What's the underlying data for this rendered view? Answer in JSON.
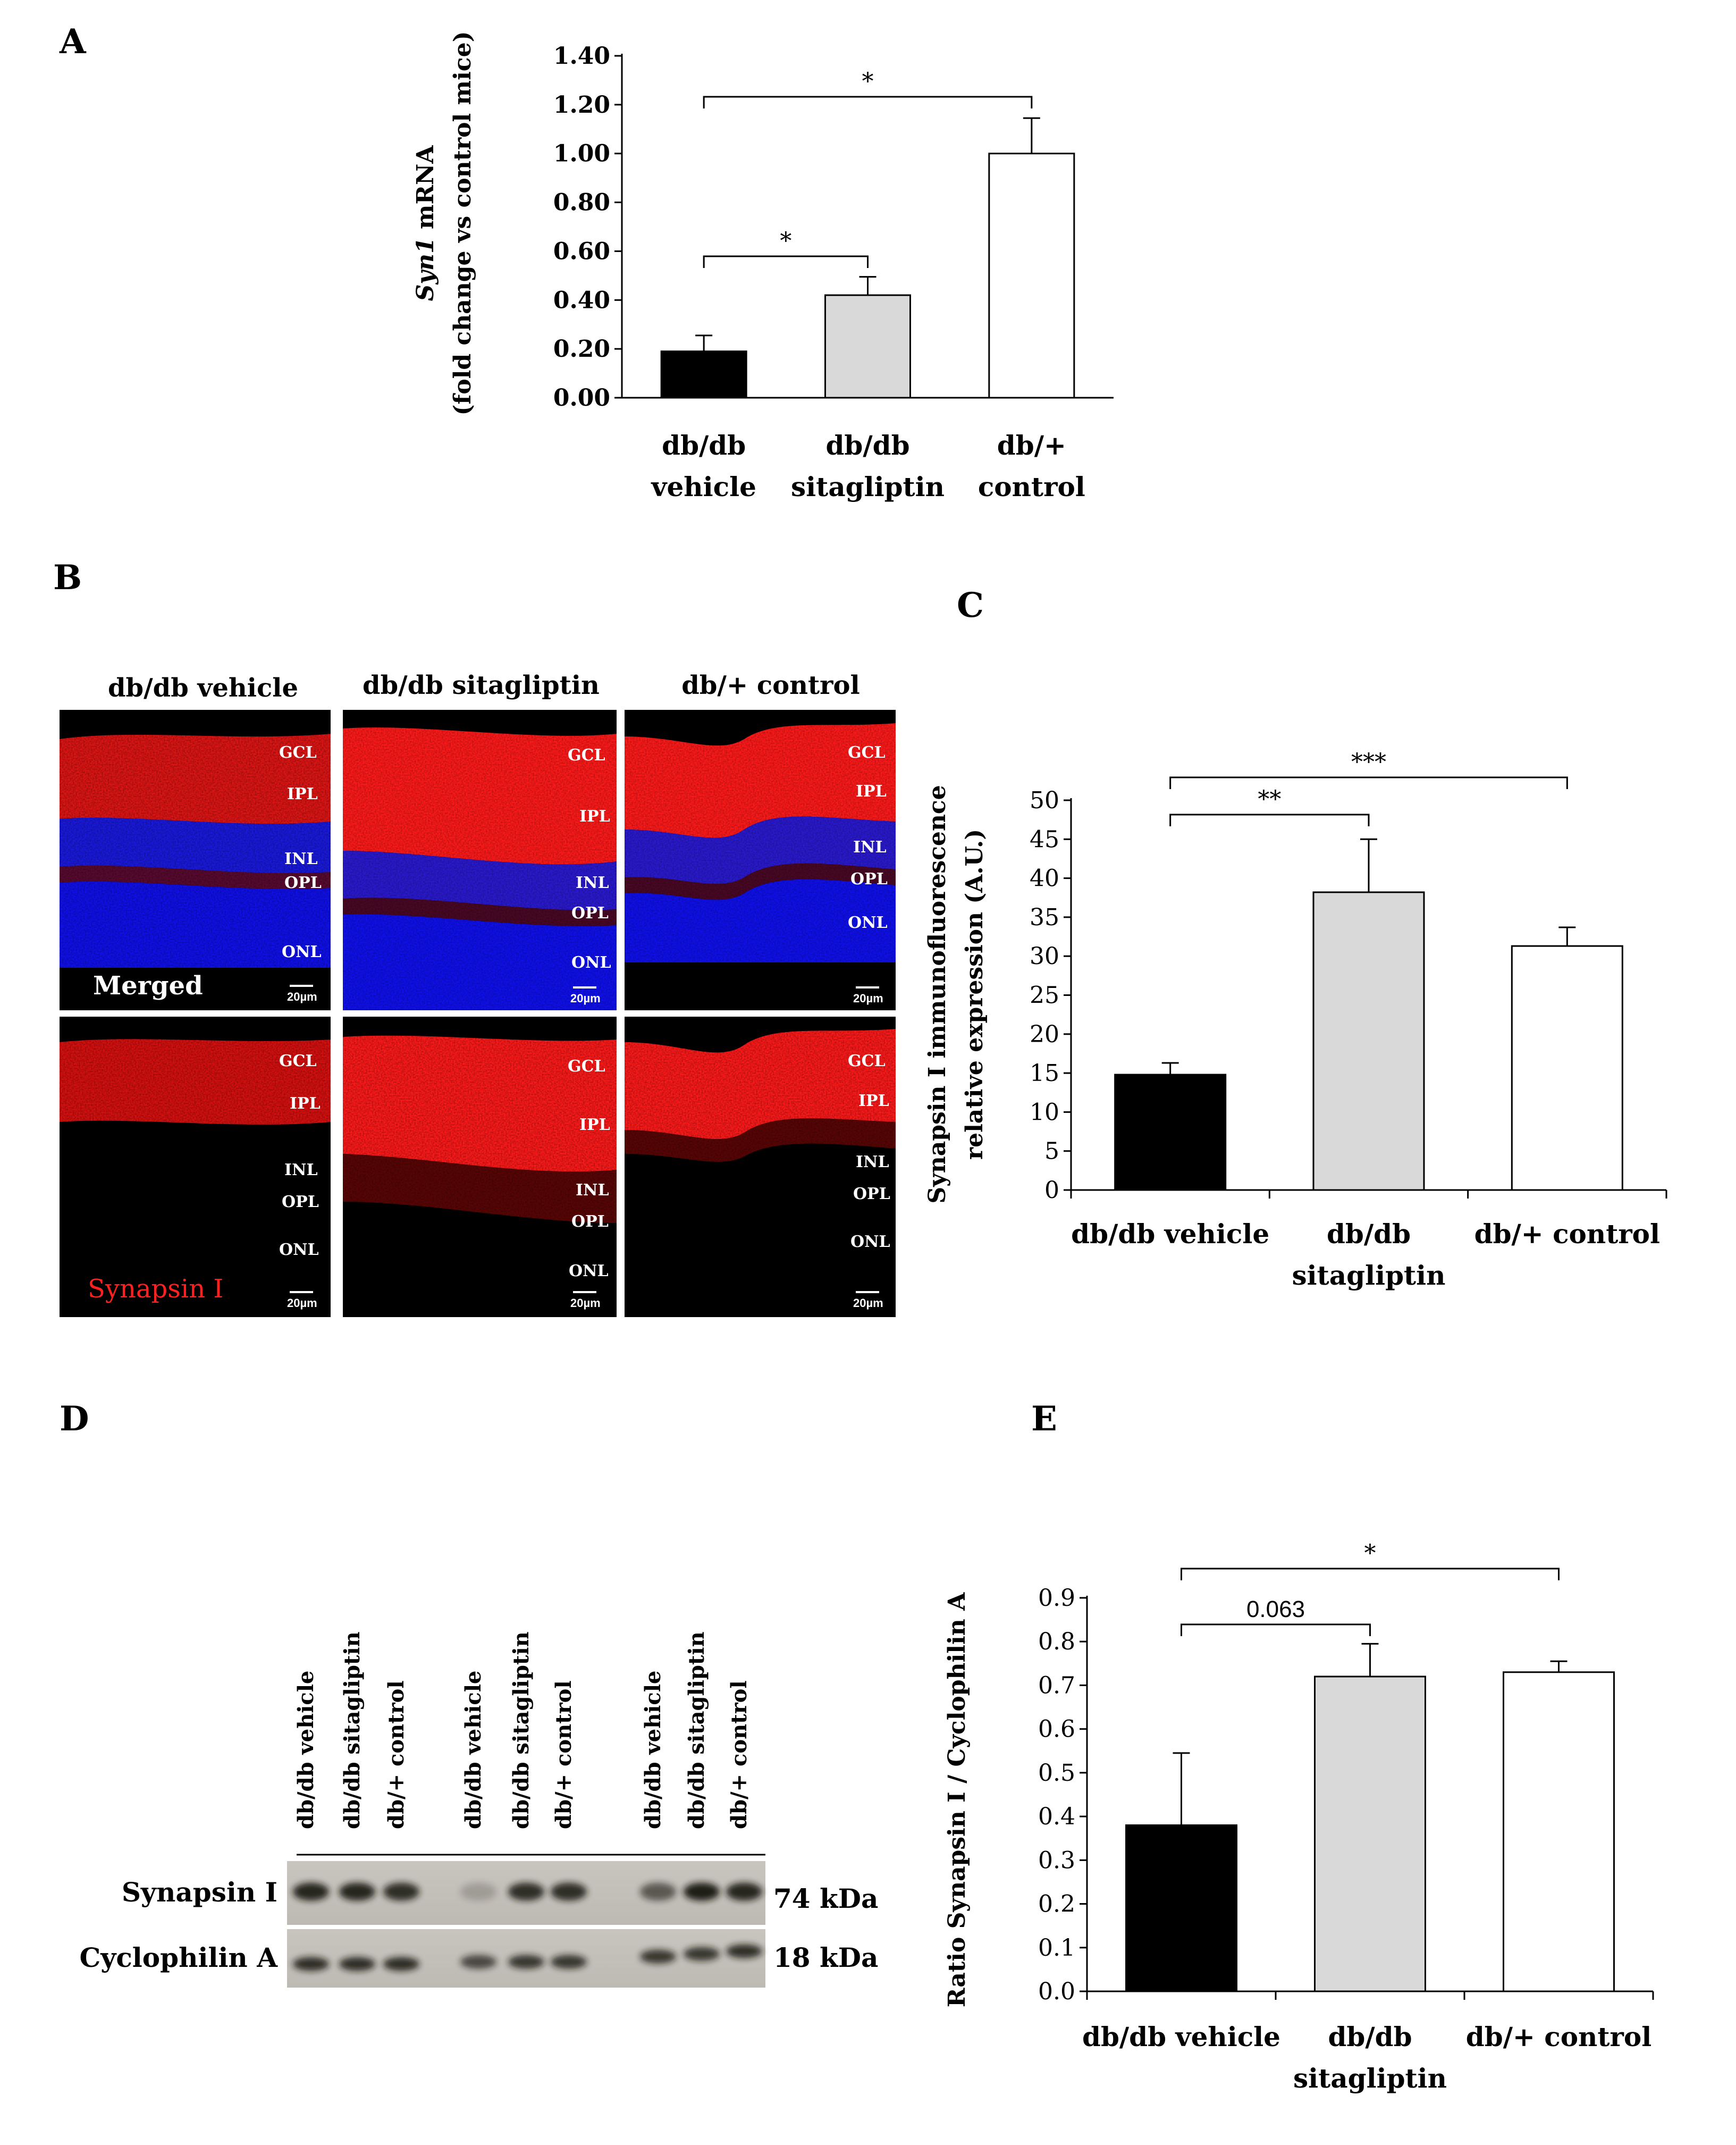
{
  "colors": {
    "dbdb_vehicle": "#000000",
    "dbdb_sitagliptin": "#d9d9d9",
    "dbplus_control": "#ffffff",
    "merged_red": "#ff1a1a",
    "merged_blue": "#1a1aff",
    "synapsin_label": "#ff2020"
  },
  "panels": {
    "A": "A",
    "B": "B",
    "C": "C",
    "D": "D",
    "E": "E"
  },
  "chart_data": [
    {
      "id": "A",
      "type": "bar",
      "categories": [
        [
          "db/db",
          "vehicle"
        ],
        [
          "db/db",
          "sitagliptin"
        ],
        [
          "db/+",
          "control"
        ]
      ],
      "values": [
        0.19,
        0.42,
        1.0
      ],
      "errors": [
        0.065,
        0.075,
        0.145
      ],
      "ylim": [
        0,
        1.4
      ],
      "yticks": [
        "0.00",
        "0.20",
        "0.40",
        "0.60",
        "0.80",
        "1.00",
        "1.20",
        "1.40"
      ],
      "ytick_values": [
        0,
        0.2,
        0.4,
        0.6,
        0.8,
        1.0,
        1.2,
        1.4
      ],
      "ylabel_italic": "Syn1",
      "ylabel_rest": " mRNA",
      "ylabel_line2": "(fold change vs control mice)",
      "significance": [
        {
          "from": 0,
          "to": 2,
          "label": "*"
        },
        {
          "from": 0,
          "to": 1,
          "label": "*"
        }
      ]
    },
    {
      "id": "C",
      "type": "bar",
      "categories": [
        [
          "db/db vehicle"
        ],
        [
          "db/db",
          "sitagliptin"
        ],
        [
          "db/+ control"
        ]
      ],
      "values": [
        14.8,
        38.2,
        31.3
      ],
      "errors": [
        1.5,
        6.8,
        2.4
      ],
      "ylim": [
        0,
        50
      ],
      "yticks": [
        "0",
        "5",
        "10",
        "15",
        "20",
        "25",
        "30",
        "35",
        "40",
        "45",
        "50"
      ],
      "ytick_values": [
        0,
        5,
        10,
        15,
        20,
        25,
        30,
        35,
        40,
        45,
        50
      ],
      "ylabel_line1": "Synapsin I immunofluorescence",
      "ylabel_line2": "relative expression (A.U.)",
      "significance": [
        {
          "from": 0,
          "to": 2,
          "label": "***"
        },
        {
          "from": 0,
          "to": 1,
          "label": "**"
        }
      ]
    },
    {
      "id": "E",
      "type": "bar",
      "categories": [
        [
          "db/db vehicle"
        ],
        [
          "db/db",
          "sitagliptin"
        ],
        [
          "db/+ control"
        ]
      ],
      "values": [
        0.38,
        0.72,
        0.73
      ],
      "errors": [
        0.165,
        0.075,
        0.025
      ],
      "ylim": [
        0,
        0.9
      ],
      "yticks": [
        "0.0",
        "0.1",
        "0.2",
        "0.3",
        "0.4",
        "0.5",
        "0.6",
        "0.7",
        "0.8",
        "0.9"
      ],
      "ytick_values": [
        0,
        0.1,
        0.2,
        0.3,
        0.4,
        0.5,
        0.6,
        0.7,
        0.8,
        0.9
      ],
      "ylabel_line1": "Ratio Synapsin I / Cyclophilin A",
      "significance": [
        {
          "from": 0,
          "to": 2,
          "label": "*"
        },
        {
          "from": 0,
          "to": 1,
          "label": "0.063"
        }
      ]
    }
  ],
  "micrographs": {
    "titles": [
      "db/db vehicle",
      "db/db sitagliptin",
      "db/+ control"
    ],
    "row_labels": {
      "merged": "Merged",
      "synapsin": "Synapsin I"
    },
    "scale_bar": "20µm",
    "layers": {
      "gcl": "GCL",
      "ipl": "IPL",
      "inl": "INL",
      "opl": "OPL",
      "onl": "ONL"
    }
  },
  "western_blot": {
    "lanes": [
      "db/db vehicle",
      "db/db sitagliptin",
      "db/+ control",
      "db/db vehicle",
      "db/db sitagliptin",
      "db/+ control",
      "db/db vehicle",
      "db/db sitagliptin",
      "db/+ control"
    ],
    "rows": [
      {
        "name": "Synapsin I",
        "kda": "74 kDa",
        "intensities": [
          0.9,
          0.9,
          0.85,
          0.2,
          0.85,
          0.85,
          0.6,
          0.95,
          0.9
        ]
      },
      {
        "name": "Cyclophilin  A",
        "kda": "18 kDa",
        "intensities": [
          0.85,
          0.85,
          0.85,
          0.7,
          0.8,
          0.8,
          0.8,
          0.8,
          0.85
        ]
      }
    ]
  }
}
